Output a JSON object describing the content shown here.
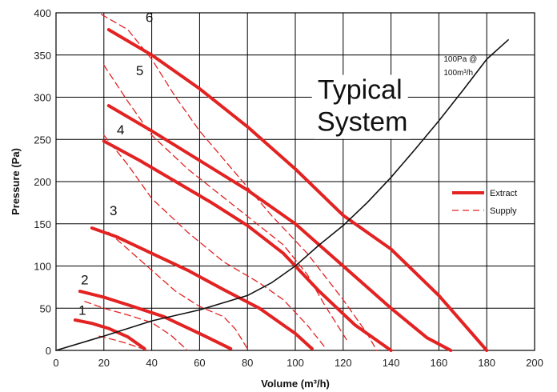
{
  "chart_data": {
    "type": "line",
    "title": "",
    "xlabel": "Volume (m³/h)",
    "ylabel": "Pressure (Pa)",
    "xlim": [
      0,
      200
    ],
    "ylim": [
      0,
      400
    ],
    "x_ticks": [
      "0",
      "20",
      "40",
      "60",
      "80",
      "100",
      "120",
      "140",
      "160",
      "180",
      "200"
    ],
    "y_ticks": [
      "0",
      "50",
      "100",
      "150",
      "200",
      "250",
      "300",
      "350",
      "400"
    ],
    "grid": true,
    "legend": {
      "placement": "right",
      "entries": [
        "Extract",
        "Supply"
      ]
    },
    "colors": {
      "fan_curves": "#e32222",
      "system_curve": "#111111",
      "grid": "#000000"
    },
    "series": [
      {
        "name": "Extract",
        "curve": "1",
        "style": "solid",
        "points": [
          [
            8,
            36
          ],
          [
            15,
            32
          ],
          [
            22,
            26
          ],
          [
            30,
            16
          ],
          [
            37,
            2
          ]
        ]
      },
      {
        "name": "Supply",
        "curve": "1",
        "style": "dashed",
        "points": [
          [
            18,
            17
          ],
          [
            25,
            12
          ],
          [
            30,
            8
          ],
          [
            35,
            3
          ],
          [
            39,
            0
          ]
        ]
      },
      {
        "name": "Extract",
        "curve": "2",
        "style": "solid",
        "points": [
          [
            10,
            70
          ],
          [
            20,
            63
          ],
          [
            30,
            54
          ],
          [
            45,
            40
          ],
          [
            60,
            20
          ],
          [
            73,
            2
          ]
        ]
      },
      {
        "name": "Supply",
        "curve": "2",
        "style": "dashed",
        "points": [
          [
            12,
            58
          ],
          [
            20,
            50
          ],
          [
            30,
            42
          ],
          [
            40,
            33
          ],
          [
            48,
            18
          ],
          [
            55,
            0
          ]
        ]
      },
      {
        "name": "Extract",
        "curve": "3",
        "style": "solid",
        "points": [
          [
            15,
            145
          ],
          [
            25,
            135
          ],
          [
            40,
            115
          ],
          [
            55,
            95
          ],
          [
            70,
            72
          ],
          [
            85,
            50
          ],
          [
            100,
            20
          ],
          [
            107,
            2
          ]
        ]
      },
      {
        "name": "Supply",
        "curve": "3",
        "style": "dashed",
        "points": [
          [
            22,
            140
          ],
          [
            30,
            120
          ],
          [
            40,
            95
          ],
          [
            50,
            70
          ],
          [
            60,
            52
          ],
          [
            70,
            40
          ],
          [
            75,
            25
          ],
          [
            80,
            2
          ]
        ]
      },
      {
        "name": "Extract",
        "curve": "4",
        "style": "solid",
        "points": [
          [
            20,
            248
          ],
          [
            35,
            225
          ],
          [
            50,
            200
          ],
          [
            65,
            175
          ],
          [
            80,
            148
          ],
          [
            95,
            115
          ],
          [
            110,
            70
          ],
          [
            125,
            30
          ],
          [
            140,
            0
          ]
        ]
      },
      {
        "name": "Supply",
        "curve": "4",
        "style": "dashed",
        "points": [
          [
            20,
            255
          ],
          [
            30,
            220
          ],
          [
            40,
            180
          ],
          [
            55,
            140
          ],
          [
            70,
            105
          ],
          [
            85,
            80
          ],
          [
            95,
            60
          ],
          [
            105,
            30
          ],
          [
            112,
            5
          ]
        ]
      },
      {
        "name": "Extract",
        "curve": "5",
        "style": "solid",
        "points": [
          [
            22,
            290
          ],
          [
            40,
            260
          ],
          [
            60,
            225
          ],
          [
            80,
            190
          ],
          [
            100,
            150
          ],
          [
            120,
            100
          ],
          [
            140,
            50
          ],
          [
            155,
            15
          ],
          [
            165,
            0
          ]
        ]
      },
      {
        "name": "Supply",
        "curve": "5",
        "style": "dashed",
        "points": [
          [
            20,
            338
          ],
          [
            30,
            295
          ],
          [
            40,
            255
          ],
          [
            55,
            215
          ],
          [
            75,
            170
          ],
          [
            95,
            125
          ],
          [
            105,
            90
          ],
          [
            112,
            55
          ],
          [
            122,
            10
          ]
        ]
      },
      {
        "name": "Extract",
        "curve": "6",
        "style": "solid",
        "points": [
          [
            22,
            380
          ],
          [
            40,
            350
          ],
          [
            60,
            310
          ],
          [
            80,
            265
          ],
          [
            100,
            215
          ],
          [
            120,
            160
          ],
          [
            140,
            120
          ],
          [
            160,
            65
          ],
          [
            180,
            0
          ]
        ]
      },
      {
        "name": "Supply",
        "curve": "6",
        "style": "dashed",
        "points": [
          [
            19,
            398
          ],
          [
            30,
            380
          ],
          [
            40,
            345
          ],
          [
            50,
            300
          ],
          [
            60,
            260
          ],
          [
            75,
            210
          ],
          [
            90,
            160
          ],
          [
            105,
            115
          ],
          [
            120,
            60
          ],
          [
            130,
            20
          ],
          [
            134,
            0
          ]
        ]
      },
      {
        "curve": "system",
        "style": "solid",
        "points": [
          [
            0,
            0
          ],
          [
            20,
            17
          ],
          [
            40,
            35
          ],
          [
            60,
            48
          ],
          [
            80,
            65
          ],
          [
            90,
            80
          ],
          [
            100,
            100
          ],
          [
            110,
            125
          ],
          [
            120,
            148
          ],
          [
            130,
            175
          ],
          [
            140,
            205
          ],
          [
            150,
            238
          ],
          [
            160,
            272
          ],
          [
            170,
            308
          ],
          [
            180,
            345
          ],
          [
            189,
            368
          ]
        ]
      }
    ],
    "curve_numbers": [
      {
        "label": "1",
        "x": 11,
        "y": 42
      },
      {
        "label": "2",
        "x": 12,
        "y": 78
      },
      {
        "label": "3",
        "x": 24,
        "y": 160
      },
      {
        "label": "4",
        "x": 27,
        "y": 256
      },
      {
        "label": "5",
        "x": 35,
        "y": 326
      },
      {
        "label": "6",
        "x": 39,
        "y": 389
      }
    ],
    "annotations": [
      {
        "text": "Typical",
        "x": 127,
        "y": 298
      },
      {
        "text": "System",
        "x": 128,
        "y": 260
      },
      {
        "text": "100Pa @",
        "x": 162,
        "y": 342
      },
      {
        "text": "100m³/h",
        "x": 162,
        "y": 326
      }
    ]
  }
}
